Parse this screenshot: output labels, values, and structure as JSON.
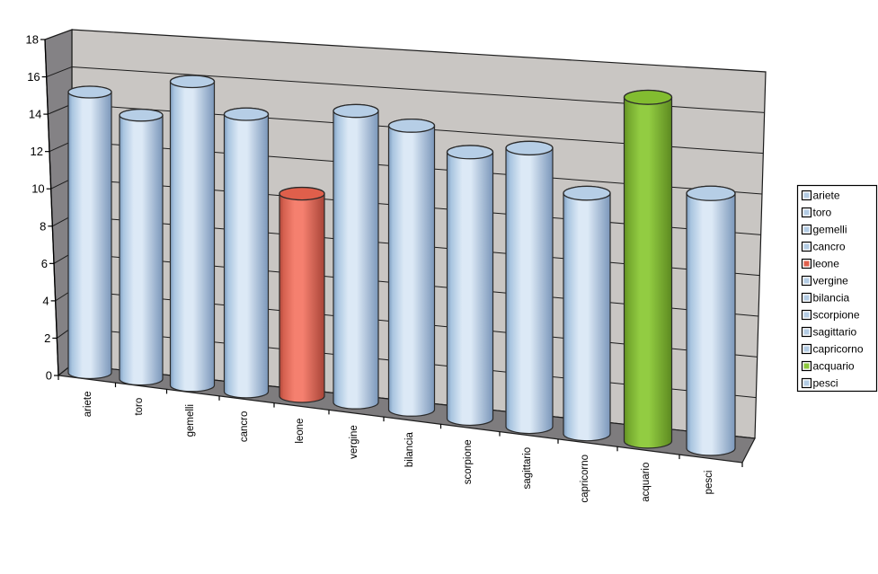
{
  "chart_data": {
    "type": "bar",
    "subtype": "3d-cylinder",
    "title": "",
    "xlabel": "",
    "ylabel": "",
    "categories": [
      "ariete",
      "toro",
      "gemelli",
      "cancro",
      "leone",
      "vergine",
      "bilancia",
      "scorpione",
      "sagittario",
      "capricorno",
      "acquario",
      "pesci"
    ],
    "values": [
      15,
      14,
      16,
      14.5,
      10.5,
      15,
      14.5,
      13.5,
      14,
      12,
      17,
      12.5
    ],
    "point_colors": [
      "blue",
      "blue",
      "blue",
      "blue",
      "red",
      "blue",
      "blue",
      "blue",
      "blue",
      "blue",
      "green",
      "blue"
    ],
    "ylim": [
      0,
      18
    ],
    "ytick_step": 2,
    "ytick_labels": [
      "0",
      "2",
      "4",
      "6",
      "8",
      "10",
      "12",
      "14",
      "16",
      "18"
    ],
    "grid": true,
    "legend": {
      "position": "right",
      "entries": [
        "ariete",
        "toro",
        "gemelli",
        "cancro",
        "leone",
        "vergine",
        "bilancia",
        "scorpione",
        "sagittario",
        "capricorno",
        "acquario",
        "pesci"
      ]
    },
    "palette": {
      "blue": {
        "body_edge_left": "#7e9dbf",
        "body_mid_left": "#a9c5e0",
        "body_light": "#dce9f6",
        "body_edge_right": "#7b97ba",
        "top": "#b6cee6",
        "swatch": "#b3cce4"
      },
      "red": {
        "body_edge_left": "#b0473a",
        "body_mid_left": "#d4604f",
        "body_light": "#f5806f",
        "body_edge_right": "#a84437",
        "top": "#df5f4b",
        "swatch": "#e0604c"
      },
      "green": {
        "body_edge_left": "#639122",
        "body_mid_left": "#74a82e",
        "body_light": "#92cc42",
        "body_edge_right": "#5d8a20",
        "top": "#82bc30",
        "swatch": "#8cc83c"
      }
    },
    "frame_colors": {
      "background": "#ffffff",
      "back_wall": "#c9c6c3",
      "side_wall": "#848285",
      "floor": "#7e7c7e",
      "gridline": "#1c1c1c",
      "outline": "#2a2a2a",
      "text": "#000000",
      "legend_bg": "#ffffff",
      "legend_border": "#000000"
    }
  }
}
